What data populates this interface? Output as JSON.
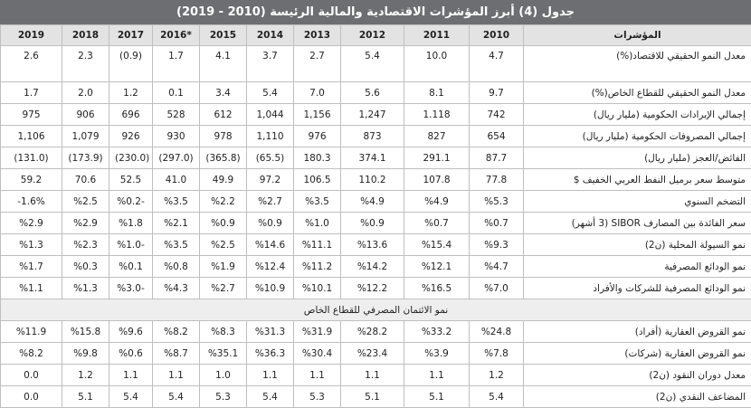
{
  "title": "جدول (4) أبرز المؤشرات الاقتصادية والمالية الرئيسة (2010 - 2019)",
  "header": [
    "المؤشرات",
    "2010",
    "2011",
    "2012",
    "2013",
    "2014",
    "2015",
    "*2016",
    "2017",
    "2018",
    "2019"
  ],
  "rows": [
    {
      "label": "معدل النمو الحقيقي للاقتصاد(%)",
      "values": [
        "4.7",
        "10.0",
        "5.4",
        "2.7",
        "3.7",
        "4.1",
        "1.7",
        "(0.9)",
        "2.3",
        "2.6"
      ]
    },
    {
      "label": "معدل النمو الحقيقي للقطاع الخاص(%)",
      "values": [
        "9.7",
        "8.1",
        "5.6",
        "7.0",
        "5.4",
        "3.4",
        "0.1",
        "1.2",
        "2.0",
        "1.7"
      ]
    },
    {
      "label": "إجمالي الإيرادات الحكومية (مليار ريال)",
      "values": [
        "742",
        "1.118",
        "1,247",
        "1,156",
        "1,044",
        "612",
        "528",
        "696",
        "906",
        "975"
      ]
    },
    {
      "label": "إجمالي المصروفات الحكومية (مليار ريال)",
      "values": [
        "654",
        "827",
        "873",
        "976",
        "1,110",
        "978",
        "930",
        "926",
        "1,079",
        "1,106"
      ]
    },
    {
      "label": "الفائض/العجز (مليار ريال)",
      "values": [
        "87.7",
        "291.1",
        "374.1",
        "180.3",
        "(65.5)",
        "(365.8)",
        "(297.0)",
        "(230.0)",
        "(173.9)",
        "(131.0)"
      ]
    },
    {
      "label": "متوسط سعر برميل النفط العربي الخفيف $",
      "values": [
        "77.8",
        "107.8",
        "110.2",
        "106.5",
        "97.2",
        "49.9",
        "41.0",
        "52.5",
        "70.6",
        "59.2"
      ]
    },
    {
      "label": "التضخم السنوي",
      "values": [
        "%5.3",
        "%4.9",
        "%4.9",
        "%3.5",
        "%2.7",
        "%2.2",
        "%3.5",
        "%0.2-",
        "%2.5",
        "-1.6%"
      ]
    },
    {
      "label": "سعر الفائدة بين المصارف SIBOR (3 أشهر)",
      "values": [
        "%0.7",
        "%0.7",
        "%0.9",
        "%1.0",
        "%0.9",
        "%0.9",
        "%2.1",
        "%1.8",
        "%2.9",
        "%2.9"
      ]
    },
    {
      "label": "نمو السيولة المحلية (ن2)",
      "values": [
        "%9.3",
        "%15.4",
        "%13.6",
        "%11.1",
        "%14.6",
        "%2.5",
        "%3.5",
        "%1.0-",
        "%2.3",
        "%1.3"
      ]
    },
    {
      "label": "نمو الودائع المصرفية",
      "values": [
        "%4.7",
        "%12.1",
        "%14.2",
        "%11.2",
        "%12.4",
        "%1.9",
        "%0.8",
        "%0.1",
        "%0.3",
        "%1.7"
      ]
    },
    {
      "label": "نمو الودائع المصرفية للشركات والأفراد",
      "values": [
        "%7.0",
        "%16.5",
        "%12.2",
        "%10.1",
        "%10.9",
        "%2.7",
        "%4.3",
        "%3.0-",
        "%1.3",
        "%1.1"
      ]
    }
  ],
  "section": "نمو الائتمان المصرفي للقطاع الخاص",
  "section_rows": [
    {
      "label": "نمو القروض العقارية (أفراد)",
      "values": [
        "%24.8",
        "%33.2",
        "%28.2",
        "%31.9",
        "%31.3",
        "%8.3",
        "%8.2",
        "%9.6",
        "%15.8",
        "%11.9"
      ]
    },
    {
      "label": "نمو القروض العقارية (شركات)",
      "values": [
        "%7.8",
        "%3.9",
        "%23.4",
        "%30.4",
        "%36.3",
        "%35.1",
        "%8.7",
        "%0.6",
        "%9.8",
        "%8.2"
      ]
    },
    {
      "label": "معدل دوران النقود (ن2)",
      "values": [
        "1.2",
        "1.1",
        "1.1",
        "1.1",
        "1.1",
        "1.0",
        "1.1",
        "1.1",
        "1.2",
        "0.0"
      ]
    },
    {
      "label": "المضاعف النقدي (ن2)",
      "values": [
        "5.4",
        "5.1",
        "5.1",
        "5.3",
        "5.4",
        "5.3",
        "5.4",
        "5.4",
        "5.1",
        "0.0"
      ]
    }
  ]
}
